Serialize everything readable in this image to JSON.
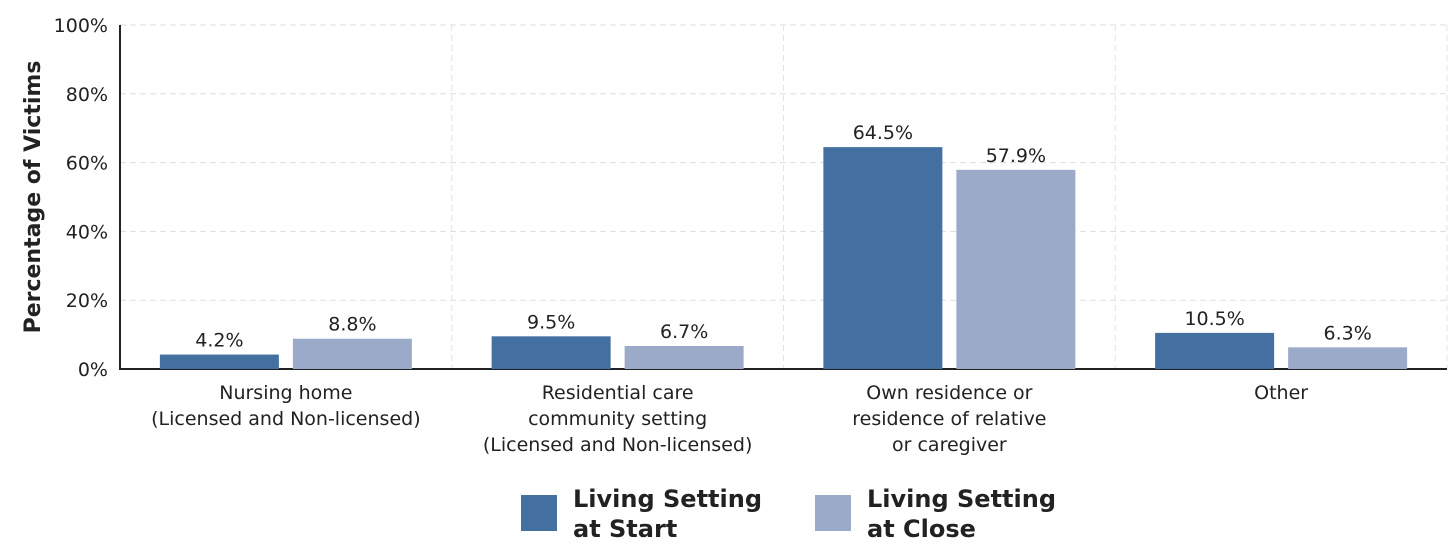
{
  "chart_data": {
    "type": "bar",
    "title": "",
    "xlabel": "",
    "ylabel": "Percentage of Victims",
    "ylim": [
      0,
      100
    ],
    "yticks": [
      "0%",
      "20%",
      "40%",
      "60%",
      "80%",
      "100%"
    ],
    "y_tick_values": [
      0,
      20,
      40,
      60,
      80,
      100
    ],
    "grid": true,
    "legend_position": "bottom",
    "categories": [
      [
        "Nursing home",
        "(Licensed and Non-licensed)"
      ],
      [
        "Residential care",
        "community setting",
        "(Licensed and Non-licensed)"
      ],
      [
        "Own residence or",
        "residence of relative",
        "or caregiver"
      ],
      [
        "Other"
      ]
    ],
    "series": [
      {
        "name": [
          "Living Setting",
          "at Start"
        ],
        "color": "#4470a1",
        "values": [
          4.2,
          9.5,
          64.5,
          10.5
        ],
        "labels": [
          "4.2%",
          "9.5%",
          "64.5%",
          "10.5%"
        ]
      },
      {
        "name": [
          "Living Setting",
          "at Close"
        ],
        "color": "#9caaca",
        "values": [
          8.8,
          6.7,
          57.9,
          6.3
        ],
        "labels": [
          "8.8%",
          "6.7%",
          "57.9%",
          "6.3%"
        ]
      }
    ]
  }
}
